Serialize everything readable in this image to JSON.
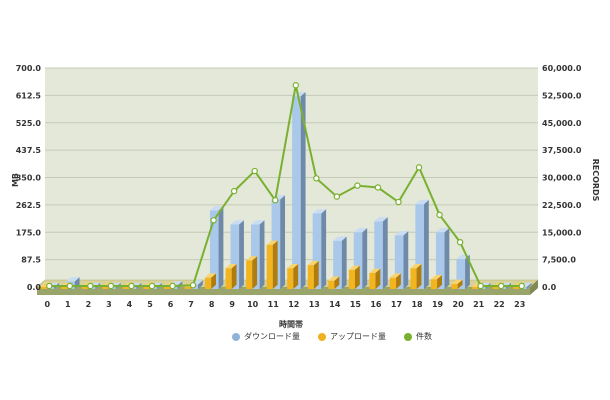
{
  "chart_data": {
    "type": "bar",
    "xlabel": "時間帯",
    "ylabel": "MB",
    "y2label": "RECORDS",
    "ylim": [
      0,
      700
    ],
    "y2lim": [
      0,
      60000
    ],
    "y_ticks": [
      "0.0",
      "87.5",
      "175.0",
      "262.5",
      "350.0",
      "437.5",
      "525.0",
      "612.5",
      "700.0"
    ],
    "y2_ticks": [
      "0.0",
      "7,500.0",
      "15,000.0",
      "22,500.0",
      "30,000.0",
      "37,500.0",
      "45,000.0",
      "52,500.0",
      "60,000.0"
    ],
    "grid": true,
    "legend_position": "bottom",
    "categories": [
      "0",
      "1",
      "2",
      "3",
      "4",
      "5",
      "6",
      "7",
      "8",
      "9",
      "10",
      "11",
      "12",
      "13",
      "14",
      "15",
      "16",
      "17",
      "18",
      "19",
      "20",
      "21",
      "22",
      "23"
    ],
    "series": [
      {
        "name": "ダウンロード量",
        "axis": "left",
        "kind": "bar",
        "color": "#8fb3d8",
        "values": [
          0,
          18,
          0,
          0,
          0,
          0,
          5,
          8,
          245,
          200,
          200,
          280,
          610,
          235,
          148,
          175,
          210,
          165,
          265,
          175,
          90,
          0,
          0,
          0
        ]
      },
      {
        "name": "アップロード量",
        "axis": "left",
        "kind": "bar",
        "color": "#f0b020",
        "values": [
          0,
          0,
          0,
          0,
          0,
          0,
          0,
          0,
          30,
          60,
          85,
          135,
          60,
          70,
          20,
          55,
          45,
          30,
          60,
          25,
          10,
          0,
          0,
          0
        ]
      },
      {
        "name": "件数",
        "axis": "right",
        "kind": "line",
        "color": "#7ab030",
        "values": [
          0,
          0,
          0,
          0,
          0,
          0,
          0,
          200,
          18000,
          26000,
          31500,
          23500,
          55000,
          29500,
          24500,
          27500,
          27000,
          23000,
          32500,
          19500,
          12000,
          0,
          0,
          0
        ]
      }
    ]
  }
}
